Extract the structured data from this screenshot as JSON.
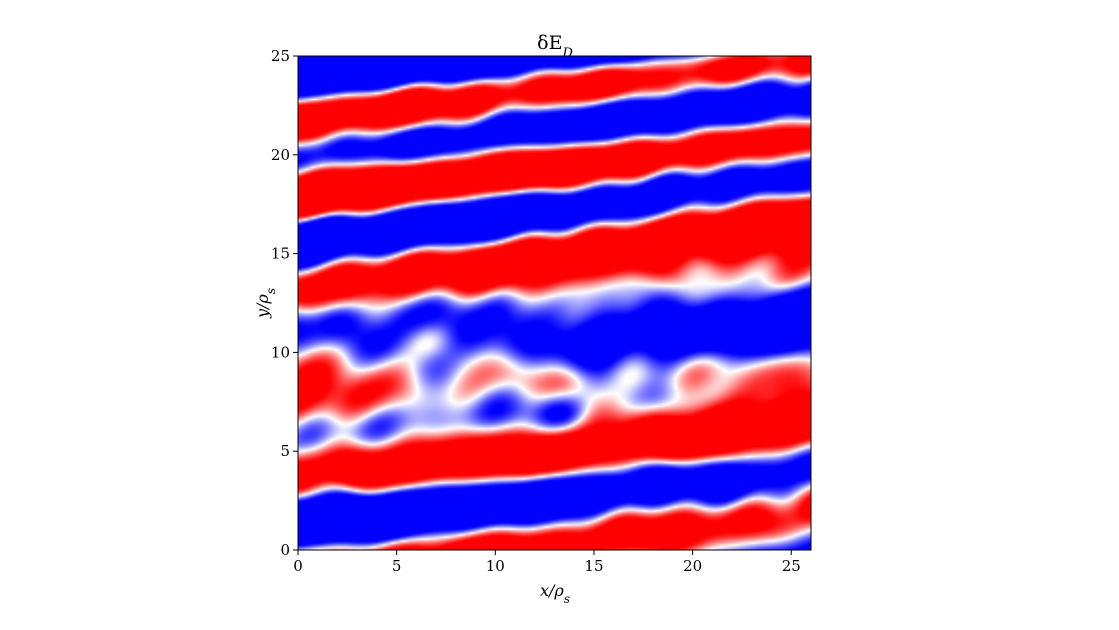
{
  "chart_data": {
    "type": "heatmap",
    "title": "δE",
    "title_subscript": "D",
    "xlabel": "x/ρ",
    "xlabel_subscript": "s",
    "ylabel": "y/ρ",
    "ylabel_subscript": "s",
    "xlim": [
      0,
      26
    ],
    "ylim": [
      0,
      25
    ],
    "x_ticks": [
      0,
      5,
      10,
      15,
      20,
      25
    ],
    "y_ticks": [
      0,
      5,
      10,
      15,
      20,
      25
    ],
    "colormap": "bwr",
    "colors": {
      "negative": "#0000ff",
      "zero": "#ffffff",
      "positive": "#ff0000"
    },
    "field_description": "turbulent fluctuation field with elongated red and blue streaks tilted slightly upward to the right"
  }
}
